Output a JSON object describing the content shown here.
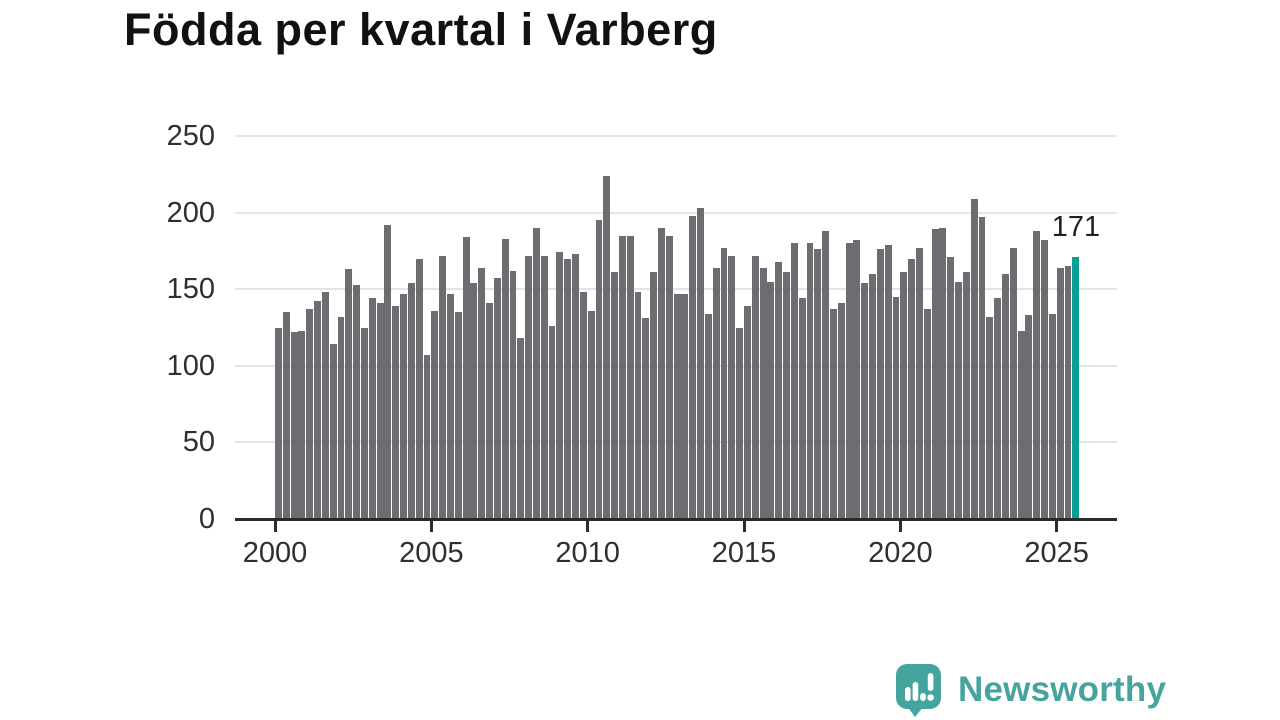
{
  "title": "Födda per kvartal i Varberg",
  "branding": {
    "name": "Newsworthy"
  },
  "colors": {
    "bar": "#6c6c71",
    "highlight": "#0a9f96",
    "grid": "#e4e4e4",
    "axis": "#2b2b2b",
    "tick_label": "#2f2f2f",
    "title_text": "#111111",
    "brand": "#46a49f"
  },
  "chart_data": {
    "type": "bar",
    "title": "Födda per kvartal i Varberg",
    "x_start": "2000Q1",
    "x_end": "2025Q3",
    "x_step": "quarter",
    "values": [
      125,
      135,
      122,
      123,
      137,
      142,
      148,
      114,
      132,
      163,
      153,
      125,
      144,
      141,
      192,
      139,
      147,
      154,
      170,
      107,
      136,
      172,
      147,
      135,
      184,
      154,
      164,
      141,
      157,
      183,
      162,
      118,
      172,
      190,
      172,
      126,
      174,
      170,
      173,
      148,
      136,
      195,
      224,
      161,
      185,
      185,
      148,
      131,
      161,
      190,
      185,
      147,
      147,
      198,
      203,
      134,
      164,
      177,
      172,
      125,
      139,
      172,
      164,
      155,
      168,
      161,
      180,
      144,
      180,
      176,
      188,
      137,
      141,
      180,
      182,
      154,
      160,
      176,
      179,
      145,
      161,
      170,
      177,
      137,
      189,
      190,
      171,
      155,
      161,
      209,
      197,
      132,
      144,
      160,
      177,
      123,
      133,
      188,
      182,
      134,
      164,
      165,
      171
    ],
    "highlight_index": 102,
    "highlight_value_label": "171",
    "y_ticks": [
      0,
      50,
      100,
      150,
      200,
      250
    ],
    "x_tick_labels": [
      "2000",
      "2005",
      "2010",
      "2015",
      "2020",
      "2025"
    ],
    "ylim": [
      0,
      250
    ],
    "grid": "horizontal",
    "legend": "none"
  }
}
